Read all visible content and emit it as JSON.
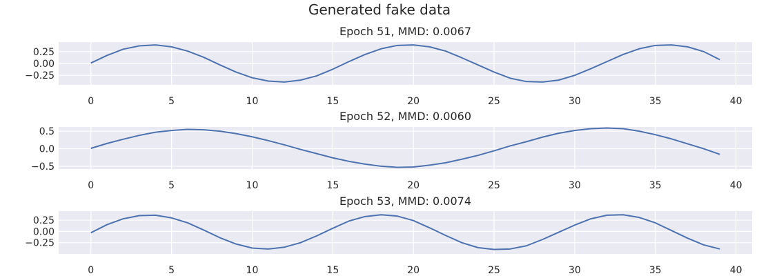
{
  "figure": {
    "title": "Generated fake data"
  },
  "colors": {
    "series": "#4c72b0",
    "plot_background": "#eaeaf2",
    "grid": "#ffffff",
    "text": "#262626"
  },
  "chart_data": [
    {
      "type": "line",
      "title": "Epoch 51, MMD: 0.0067",
      "xlabel": "",
      "ylabel": "",
      "xlim": [
        -2,
        41
      ],
      "ylim": [
        -0.45,
        0.45
      ],
      "xticks": [
        0,
        5,
        10,
        15,
        20,
        25,
        30,
        35,
        40
      ],
      "yticks": [
        0.25,
        0.0,
        -0.25
      ],
      "ytick_labels": [
        "0.25",
        "0.00",
        "−0.25"
      ],
      "grid": true,
      "series": [
        {
          "x": [
            0,
            1,
            2,
            3,
            4,
            5,
            6,
            7,
            8,
            9,
            10,
            11,
            12,
            13,
            14,
            15,
            16,
            17,
            18,
            19,
            20,
            21,
            22,
            23,
            24,
            25,
            26,
            27,
            28,
            29,
            30,
            31,
            32,
            33,
            34,
            35,
            36,
            37,
            38,
            39
          ],
          "values": [
            0.01,
            0.17,
            0.3,
            0.37,
            0.39,
            0.35,
            0.26,
            0.13,
            -0.03,
            -0.18,
            -0.3,
            -0.37,
            -0.39,
            -0.35,
            -0.26,
            -0.12,
            0.04,
            0.19,
            0.31,
            0.38,
            0.39,
            0.35,
            0.26,
            0.12,
            -0.03,
            -0.18,
            -0.31,
            -0.38,
            -0.39,
            -0.35,
            -0.25,
            -0.11,
            0.04,
            0.19,
            0.31,
            0.38,
            0.39,
            0.35,
            0.25,
            0.08
          ]
        }
      ]
    },
    {
      "type": "line",
      "title": "Epoch 52, MMD: 0.0060",
      "xlabel": "",
      "ylabel": "",
      "xlim": [
        -2,
        41
      ],
      "ylim": [
        -0.58,
        0.62
      ],
      "xticks": [
        0,
        5,
        10,
        15,
        20,
        25,
        30,
        35,
        40
      ],
      "yticks": [
        0.5,
        0.0,
        -0.5
      ],
      "ytick_labels": [
        "0.5",
        "0.0",
        "−0.5"
      ],
      "grid": true,
      "series": [
        {
          "x": [
            0,
            1,
            2,
            3,
            4,
            5,
            6,
            7,
            8,
            9,
            10,
            11,
            12,
            13,
            14,
            15,
            16,
            17,
            18,
            19,
            20,
            21,
            22,
            23,
            24,
            25,
            26,
            27,
            28,
            29,
            30,
            31,
            32,
            33,
            34,
            35,
            36,
            37,
            38,
            39
          ],
          "values": [
            0.01,
            0.15,
            0.27,
            0.38,
            0.47,
            0.52,
            0.55,
            0.54,
            0.5,
            0.43,
            0.34,
            0.23,
            0.11,
            -0.02,
            -0.14,
            -0.26,
            -0.36,
            -0.44,
            -0.5,
            -0.53,
            -0.52,
            -0.47,
            -0.4,
            -0.3,
            -0.19,
            -0.06,
            0.08,
            0.2,
            0.33,
            0.44,
            0.52,
            0.57,
            0.59,
            0.57,
            0.5,
            0.4,
            0.28,
            0.14,
            0.0,
            -0.16
          ]
        }
      ]
    },
    {
      "type": "line",
      "title": "Epoch 53, MMD: 0.0074",
      "xlabel": "",
      "ylabel": "",
      "xlim": [
        -2,
        41
      ],
      "ylim": [
        -0.5,
        0.45
      ],
      "xticks": [
        0,
        5,
        10,
        15,
        20,
        25,
        30,
        35,
        40
      ],
      "yticks": [
        0.25,
        0.0,
        -0.25
      ],
      "ytick_labels": [
        "0.25",
        "0.00",
        "−0.25"
      ],
      "grid": true,
      "series": [
        {
          "x": [
            0,
            1,
            2,
            3,
            4,
            5,
            6,
            7,
            8,
            9,
            10,
            11,
            12,
            13,
            14,
            15,
            16,
            17,
            18,
            19,
            20,
            21,
            22,
            23,
            24,
            25,
            26,
            27,
            28,
            29,
            30,
            31,
            32,
            33,
            34,
            35,
            36,
            37,
            38,
            39
          ],
          "values": [
            -0.03,
            0.15,
            0.28,
            0.35,
            0.36,
            0.3,
            0.19,
            0.03,
            -0.14,
            -0.28,
            -0.37,
            -0.39,
            -0.35,
            -0.25,
            -0.1,
            0.07,
            0.23,
            0.33,
            0.37,
            0.34,
            0.24,
            0.08,
            -0.09,
            -0.25,
            -0.36,
            -0.4,
            -0.39,
            -0.32,
            -0.18,
            -0.02,
            0.14,
            0.28,
            0.36,
            0.37,
            0.31,
            0.19,
            0.02,
            -0.15,
            -0.3,
            -0.39
          ]
        }
      ]
    }
  ]
}
